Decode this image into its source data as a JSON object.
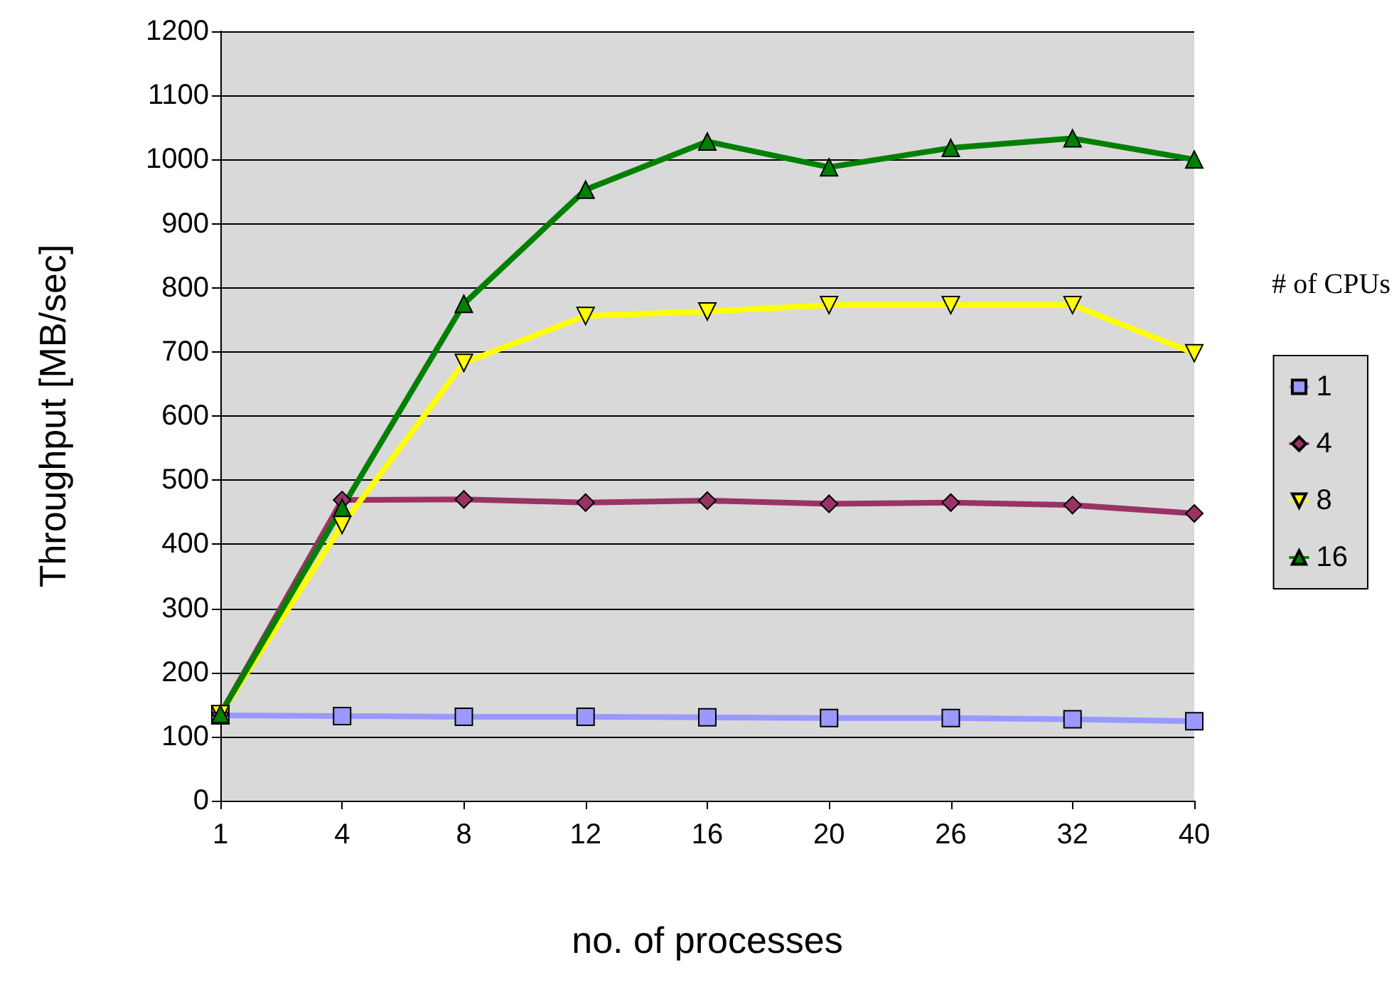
{
  "chart_data": {
    "type": "line",
    "xlabel": "no. of processes",
    "ylabel": "Throughput [MB/sec]",
    "legend_title": "# of CPUs",
    "categories": [
      "1",
      "4",
      "8",
      "12",
      "16",
      "20",
      "26",
      "32",
      "40"
    ],
    "series": [
      {
        "name": "1",
        "color": "#9999ff",
        "marker": "square",
        "values": [
          133,
          132,
          131,
          131,
          130,
          129,
          129,
          127,
          124
        ]
      },
      {
        "name": "4",
        "color": "#993366",
        "marker": "diamond",
        "values": [
          135,
          469,
          470,
          465,
          468,
          463,
          465,
          461,
          448
        ]
      },
      {
        "name": "8",
        "color": "#ffff00",
        "marker": "triangle-down",
        "values": [
          135,
          430,
          683,
          756,
          763,
          773,
          773,
          773,
          698
        ]
      },
      {
        "name": "16",
        "color": "#008000",
        "marker": "triangle",
        "values": [
          135,
          457,
          775,
          953,
          1028,
          988,
          1018,
          1033,
          1000
        ]
      }
    ],
    "ylim": [
      0,
      1200
    ],
    "yticks": [
      0,
      100,
      200,
      300,
      400,
      500,
      600,
      700,
      800,
      900,
      1000,
      1100,
      1200
    ],
    "grid": "y",
    "legend": "right"
  }
}
